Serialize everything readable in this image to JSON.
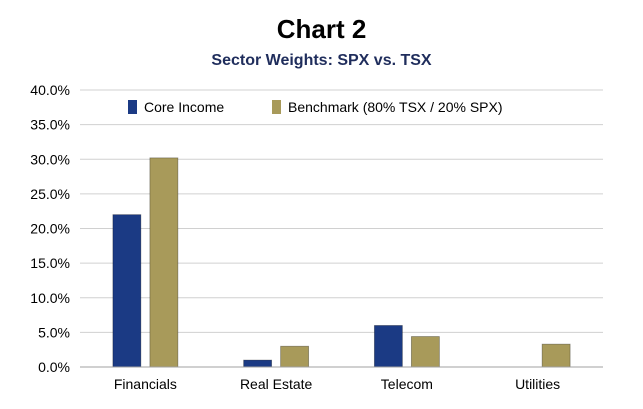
{
  "chart_data": {
    "type": "bar",
    "title": "Chart 2",
    "subtitle": "Sector Weights: SPX vs. TSX",
    "categories": [
      "Financials",
      "Real Estate",
      "Telecom",
      "Utilities"
    ],
    "series": [
      {
        "name": "Core Income",
        "values": [
          22.0,
          1.0,
          6.0,
          0.0
        ],
        "color": "#1b3a84"
      },
      {
        "name": "Benchmark (80% TSX / 20% SPX)",
        "values": [
          30.2,
          3.0,
          4.4,
          3.3
        ],
        "color": "#a89a5a"
      }
    ],
    "ylim": [
      0,
      40
    ],
    "yticks": [
      "0.0%",
      "5.0%",
      "10.0%",
      "15.0%",
      "20.0%",
      "25.0%",
      "30.0%",
      "35.0%",
      "40.0%"
    ],
    "grid": true,
    "legend_position": "top-inside",
    "colors": {
      "grid": "#d0d0d0",
      "axis": "#a0a0a0",
      "subtitle": "#1f2d5c"
    }
  }
}
